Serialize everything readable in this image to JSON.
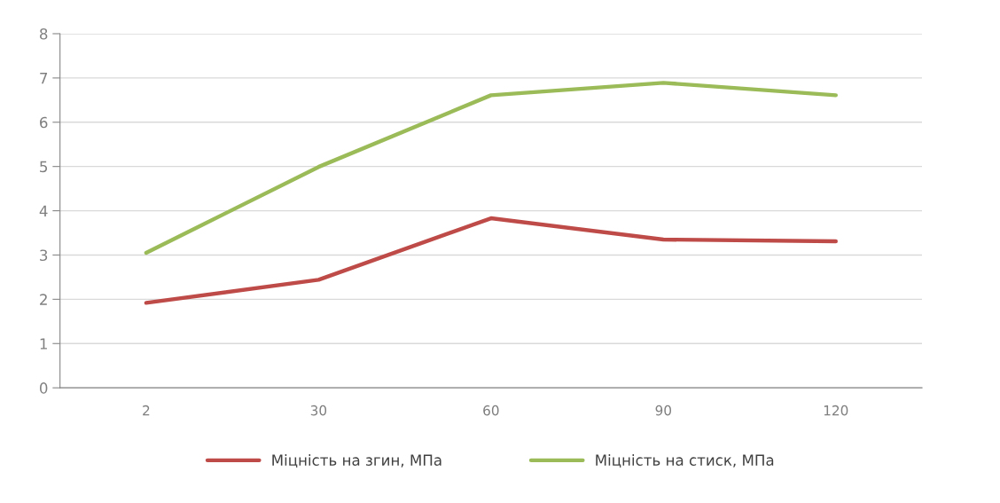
{
  "chart_data": {
    "type": "line",
    "categories": [
      "2",
      "30",
      "60",
      "90",
      "120"
    ],
    "series": [
      {
        "name": "Міцність на згин, МПа",
        "color": "#be4b48",
        "values": [
          1.92,
          2.44,
          3.83,
          3.35,
          3.31
        ]
      },
      {
        "name": "Міцність на стиск, МПа",
        "color": "#9bbb59",
        "values": [
          3.05,
          4.99,
          6.61,
          6.89,
          6.61
        ]
      }
    ],
    "ylim": [
      0,
      8
    ],
    "yticks": [
      0,
      1,
      2,
      3,
      4,
      5,
      6,
      7,
      8
    ],
    "grid": "y",
    "legend": "bottom",
    "marker": "none",
    "line_style": "solid"
  }
}
